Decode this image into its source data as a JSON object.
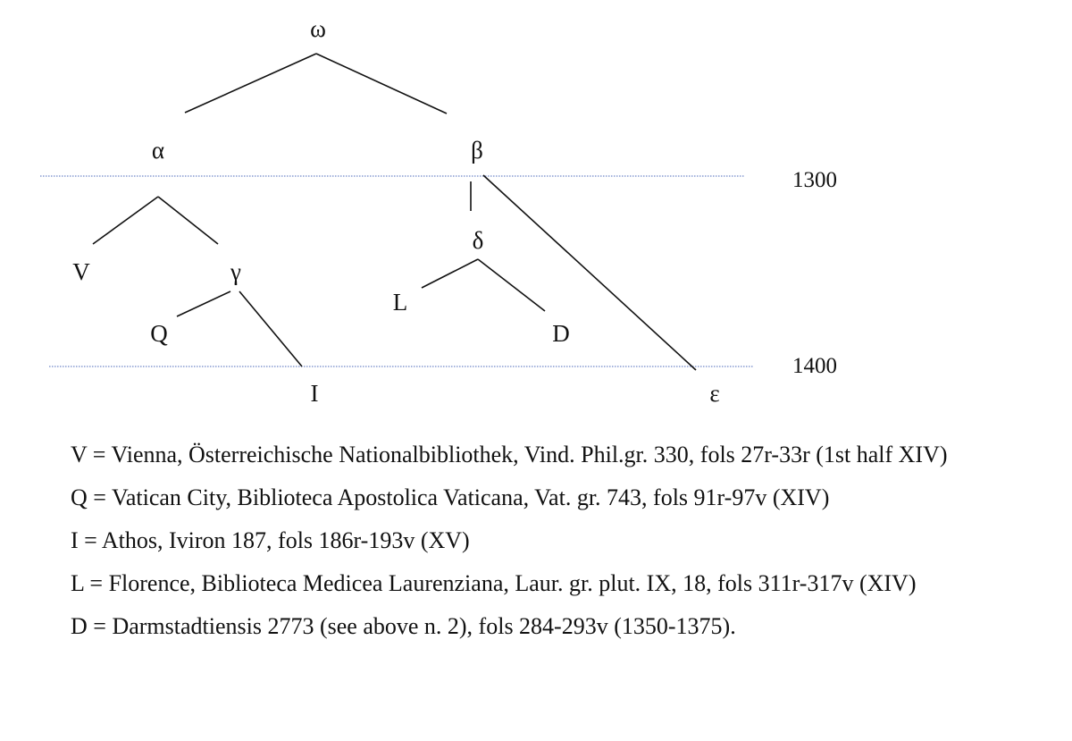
{
  "stemma": {
    "nodes": {
      "omega": "ω",
      "alpha": "α",
      "beta": "β",
      "gamma": "γ",
      "delta": "δ",
      "epsilon": "ε",
      "V": "V",
      "Q": "Q",
      "I": "I",
      "L": "L",
      "D": "D"
    },
    "edges": [
      [
        "omega",
        "alpha"
      ],
      [
        "omega",
        "beta"
      ],
      [
        "alpha",
        "V"
      ],
      [
        "alpha",
        "gamma"
      ],
      [
        "gamma",
        "Q"
      ],
      [
        "gamma",
        "I"
      ],
      [
        "beta",
        "delta"
      ],
      [
        "beta",
        "epsilon"
      ],
      [
        "delta",
        "L"
      ],
      [
        "delta",
        "D"
      ]
    ],
    "century_markers": [
      "1300",
      "1400"
    ]
  },
  "legend": [
    "V = Vienna, Österreichische Nationalbibliothek, Vind. Phil.gr. 330, fols 27r-33r (1st half XIV)",
    "Q = Vatican City, Biblioteca Apostolica Vaticana, Vat. gr. 743, fols 91r-97v (XIV)",
    "I = Athos, Iviron 187, fols 186r-193v (XV)",
    "L = Florence, Biblioteca Medicea Laurenziana, Laur. gr. plut. IX, 18, fols 311r-317v (XIV)",
    "D = Darmstadtiensis 2773 (see above n. 2), fols 284-293v (1350-1375)."
  ]
}
